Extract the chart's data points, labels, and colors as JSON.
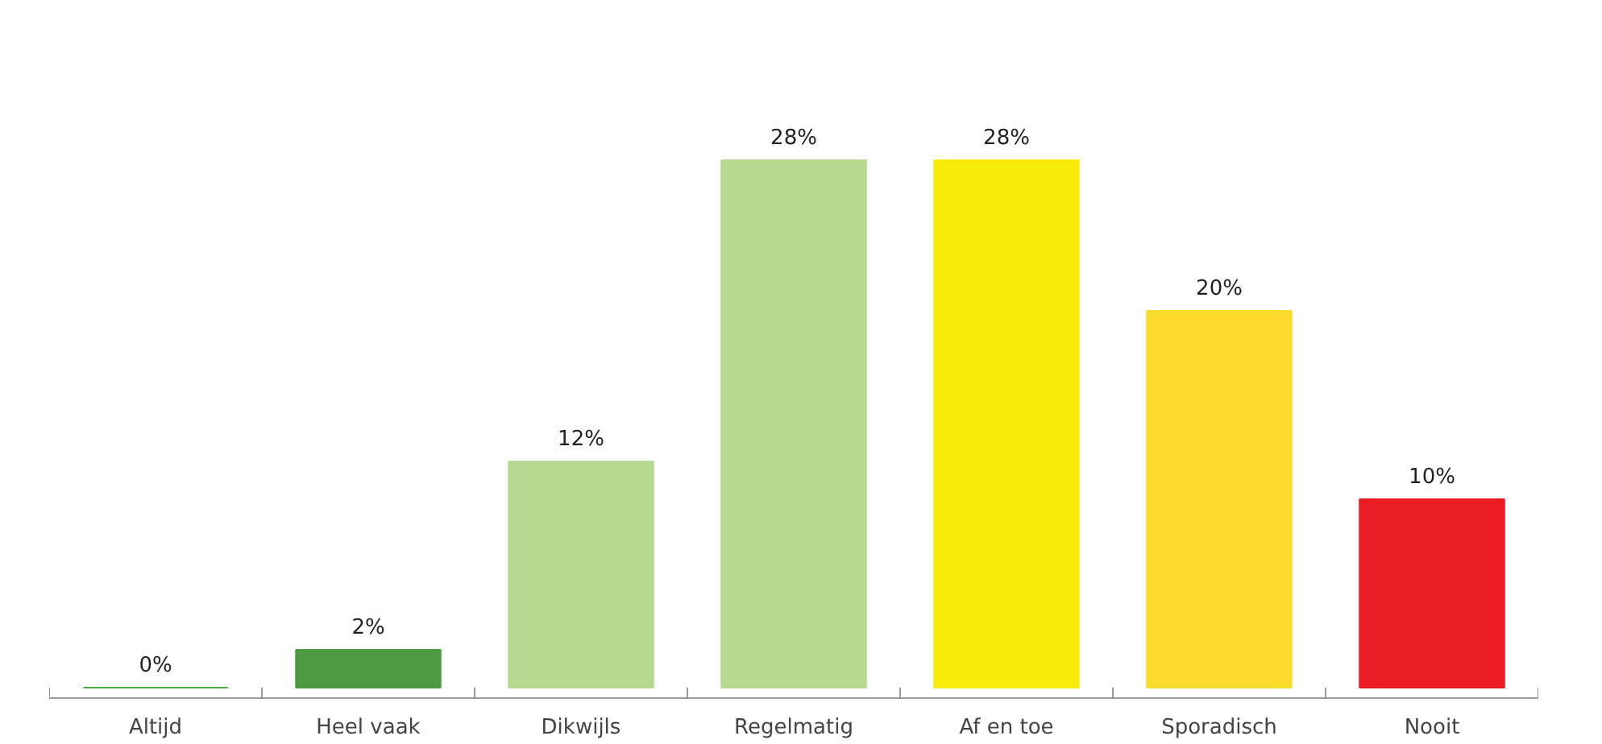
{
  "chart_data": {
    "type": "bar",
    "categories": [
      "Altijd",
      "Heel vaak",
      "Dikwijls",
      "Regelmatig",
      "Af en toe",
      "Sporadisch",
      "Nooit"
    ],
    "values": [
      0,
      2,
      12,
      28,
      28,
      20,
      10
    ],
    "colors": [
      "#4ea844",
      "#4e9a43",
      "#b5d98e",
      "#b5d98e",
      "#f9ec0a",
      "#fcdb2e",
      "#ec1c24"
    ],
    "value_labels": [
      "0%",
      "2%",
      "12%",
      "28%",
      "28%",
      "20%",
      "10%"
    ]
  }
}
